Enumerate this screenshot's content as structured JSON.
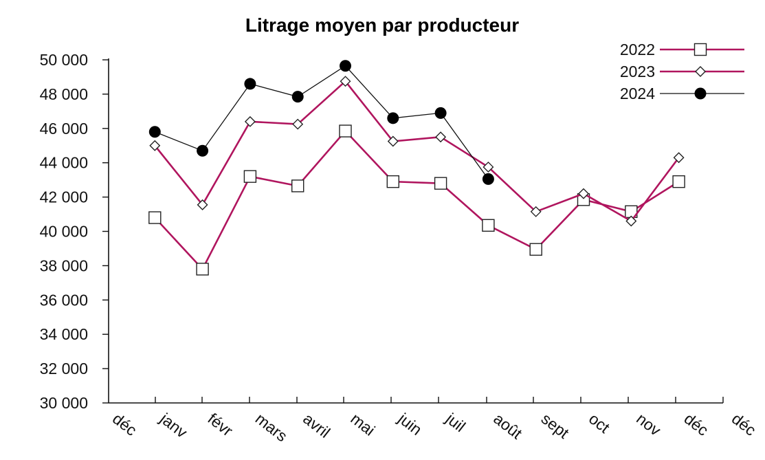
{
  "chart_data": {
    "type": "line",
    "title": "Litrage moyen par producteur",
    "xlabel": "",
    "ylabel": "",
    "categories": [
      "déc",
      "janv",
      "févr",
      "mars",
      "avril",
      "mai",
      "juin",
      "juil",
      "août",
      "sept",
      "oct",
      "nov",
      "déc",
      "déc"
    ],
    "yticks": [
      "30 000",
      "32 000",
      "34 000",
      "36 000",
      "38 000",
      "40 000",
      "42 000",
      "44 000",
      "46 000",
      "48 000",
      "50 000"
    ],
    "ylim": [
      30000,
      50000
    ],
    "grid": false,
    "legend_position": "top-right",
    "series": [
      {
        "name": "2022",
        "color": "#b0155e",
        "marker": "square",
        "x": [
          "janv",
          "févr",
          "mars",
          "avril",
          "mai",
          "juin",
          "juil",
          "août",
          "sept",
          "oct",
          "nov",
          "déc"
        ],
        "values": [
          40800,
          37800,
          43200,
          42650,
          45850,
          42900,
          42800,
          40350,
          38950,
          41850,
          41150,
          42900
        ]
      },
      {
        "name": "2023",
        "color": "#b0155e",
        "marker": "diamond",
        "x": [
          "janv",
          "févr",
          "mars",
          "avril",
          "mai",
          "juin",
          "juil",
          "août",
          "sept",
          "oct",
          "nov",
          "déc"
        ],
        "values": [
          45000,
          41550,
          46400,
          46250,
          48750,
          45250,
          45500,
          43750,
          41150,
          42200,
          40600,
          44300
        ]
      },
      {
        "name": "2024",
        "color": "#111111",
        "marker": "circle",
        "x": [
          "janv",
          "févr",
          "mars",
          "avril",
          "mai",
          "juin",
          "juil",
          "août"
        ],
        "values": [
          45800,
          44700,
          48600,
          47850,
          49650,
          46600,
          46900,
          43050
        ]
      }
    ]
  }
}
